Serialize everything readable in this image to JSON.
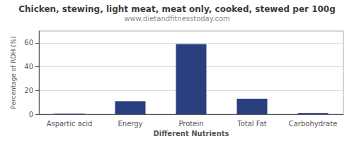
{
  "chart_data": {
    "type": "bar",
    "title": "Chicken, stewing, light meat, meat only, cooked, stewed per 100g",
    "subtitle": "www.dietandfitnesstoday.com",
    "xlabel": "Different Nutrients",
    "ylabel": "Percentage of RDH (%)",
    "categories": [
      "Aspartic acid",
      "Energy",
      "Protein",
      "Total Fat",
      "Carbohydrate"
    ],
    "values": [
      0.5,
      11,
      59,
      13,
      1
    ],
    "color": "#2a3f7e",
    "ylim": [
      0,
      70
    ],
    "yticks": [
      0,
      20,
      40,
      60
    ],
    "grid": true
  }
}
